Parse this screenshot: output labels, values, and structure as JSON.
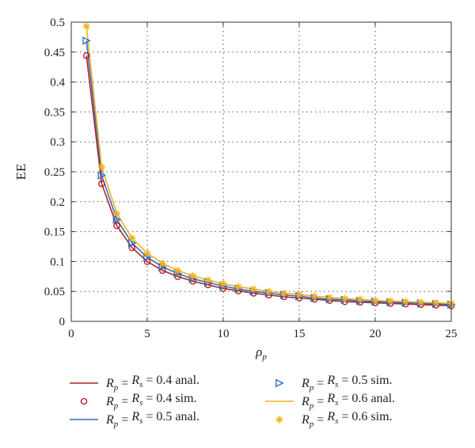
{
  "chart_data": {
    "type": "line",
    "xlabel": "ρ",
    "xlabel_subscript": "p",
    "ylabel": "EE",
    "xlim": [
      0,
      25
    ],
    "ylim": [
      0,
      0.5
    ],
    "xticks": [
      "0",
      "5",
      "10",
      "15",
      "20",
      "25"
    ],
    "yticks": [
      "0",
      "0.05",
      "0.1",
      "0.15",
      "0.2",
      "0.25",
      "0.3",
      "0.35",
      "0.4",
      "0.45",
      "0.5"
    ],
    "grid": true,
    "legend_position": "bottom",
    "x": [
      1,
      2,
      3,
      4,
      5,
      6,
      7,
      8,
      9,
      10,
      11,
      12,
      13,
      14,
      15,
      16,
      17,
      18,
      19,
      20,
      21,
      22,
      23,
      24,
      25
    ],
    "series": [
      {
        "name": "R_p = R_s = 0.4 anal.",
        "color": "#b22222",
        "style": "line",
        "values": [
          0.444,
          0.23,
          0.16,
          0.123,
          0.1,
          0.085,
          0.075,
          0.067,
          0.061,
          0.055,
          0.051,
          0.047,
          0.044,
          0.041,
          0.039,
          0.037,
          0.035,
          0.033,
          0.032,
          0.031,
          0.03,
          0.029,
          0.028,
          0.027,
          0.026
        ]
      },
      {
        "name": "R_p = R_s = 0.4 sim.",
        "color": "#b22222",
        "style": "marker-circle",
        "values": [
          0.444,
          0.23,
          0.16,
          0.123,
          0.1,
          0.085,
          0.075,
          0.067,
          0.061,
          0.055,
          0.051,
          0.047,
          0.044,
          0.041,
          0.039,
          0.037,
          0.035,
          0.033,
          0.032,
          0.031,
          0.03,
          0.029,
          0.028,
          0.027,
          0.026
        ]
      },
      {
        "name": "R_p = R_s = 0.5 anal.",
        "color": "#2e6fc7",
        "style": "line",
        "values": [
          0.469,
          0.244,
          0.17,
          0.131,
          0.107,
          0.091,
          0.08,
          0.071,
          0.065,
          0.059,
          0.054,
          0.05,
          0.047,
          0.044,
          0.042,
          0.039,
          0.037,
          0.036,
          0.034,
          0.033,
          0.032,
          0.031,
          0.03,
          0.029,
          0.028
        ]
      },
      {
        "name": "R_p = R_s = 0.5 sim.",
        "color": "#2e6fc7",
        "style": "marker-triangle-right",
        "values": [
          0.469,
          0.244,
          0.17,
          0.131,
          0.107,
          0.091,
          0.08,
          0.071,
          0.065,
          0.059,
          0.054,
          0.05,
          0.047,
          0.044,
          0.042,
          0.039,
          0.037,
          0.036,
          0.034,
          0.033,
          0.032,
          0.031,
          0.03,
          0.029,
          0.028
        ]
      },
      {
        "name": "R_p = R_s = 0.6 anal.",
        "color": "#f2b21c",
        "style": "line",
        "values": [
          0.493,
          0.258,
          0.18,
          0.139,
          0.114,
          0.097,
          0.085,
          0.076,
          0.069,
          0.063,
          0.058,
          0.054,
          0.05,
          0.047,
          0.045,
          0.042,
          0.04,
          0.038,
          0.037,
          0.035,
          0.034,
          0.033,
          0.032,
          0.031,
          0.03
        ]
      },
      {
        "name": "R_p = R_s = 0.6 sim.",
        "color": "#f2b21c",
        "style": "marker-star",
        "values": [
          0.493,
          0.258,
          0.18,
          0.139,
          0.114,
          0.097,
          0.085,
          0.076,
          0.069,
          0.063,
          0.058,
          0.054,
          0.05,
          0.047,
          0.045,
          0.042,
          0.04,
          0.038,
          0.037,
          0.035,
          0.034,
          0.033,
          0.032,
          0.031,
          0.03
        ]
      }
    ],
    "legend": [
      {
        "series": 0,
        "value": "0.4",
        "kind": "anal."
      },
      {
        "series": 3,
        "value": "0.5",
        "kind": "sim."
      },
      {
        "series": 1,
        "value": "0.4",
        "kind": "sim."
      },
      {
        "series": 4,
        "value": "0.6",
        "kind": "anal."
      },
      {
        "series": 2,
        "value": "0.5",
        "kind": "anal."
      },
      {
        "series": 5,
        "value": "0.6",
        "kind": "sim."
      }
    ]
  }
}
